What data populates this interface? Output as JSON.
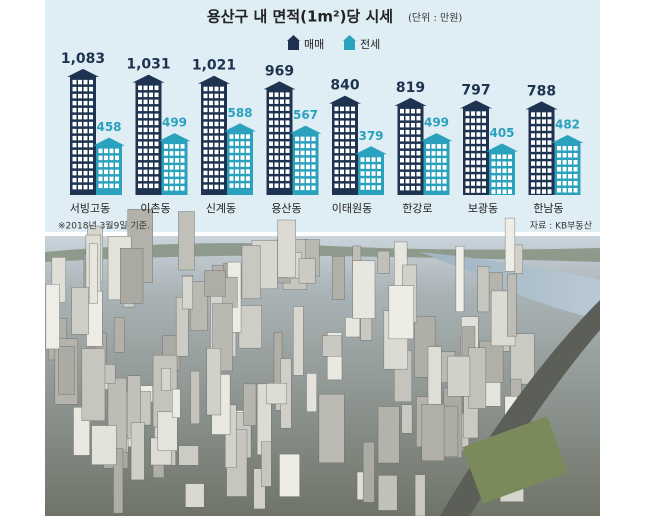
{
  "chart_data": {
    "type": "bar",
    "title": "용산구 내 면적(1m²)당 시세",
    "subtitle": "(단위 : 만원)",
    "categories": [
      "서빙고동",
      "이촌동",
      "신계동",
      "용산동",
      "이태원동",
      "한강로",
      "보광동",
      "한남동"
    ],
    "series": [
      {
        "name": "매매",
        "color": "#1e3350",
        "values": [
          1083,
          1031,
          1021,
          969,
          840,
          819,
          797,
          788
        ],
        "value_labels": [
          "1,083",
          "1,031",
          "1,021",
          "969",
          "840",
          "819",
          "797",
          "788"
        ]
      },
      {
        "name": "전세",
        "color": "#2aa1bd",
        "values": [
          458,
          499,
          588,
          567,
          379,
          499,
          405,
          482
        ]
      }
    ],
    "note": "※2018년 3월9일 기준.",
    "source": "자료 : KB부동산"
  }
}
